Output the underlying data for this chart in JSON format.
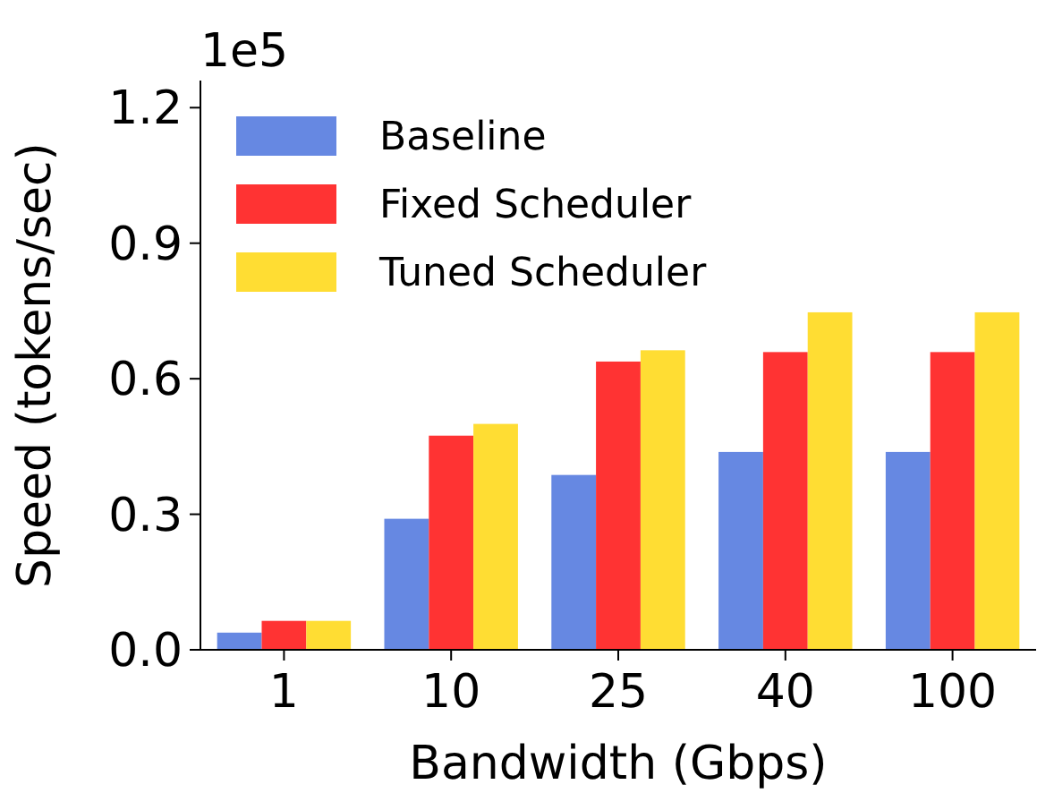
{
  "chart_data": {
    "type": "bar",
    "xlabel": "Bandwidth (Gbps)",
    "ylabel": "Speed (tokens/sec)",
    "annotations": [
      "1e5"
    ],
    "categories": [
      "1",
      "10",
      "25",
      "40",
      "100"
    ],
    "series": [
      {
        "name": "Baseline",
        "color": "#6688e2",
        "values": [
          0.038,
          0.29,
          0.387,
          0.438,
          0.438
        ]
      },
      {
        "name": "Fixed Scheduler",
        "color": "#ff3333",
        "values": [
          0.064,
          0.474,
          0.638,
          0.659,
          0.659
        ]
      },
      {
        "name": "Tuned Scheduler",
        "color": "#ffdd33",
        "values": [
          0.064,
          0.5,
          0.663,
          0.747,
          0.747
        ]
      }
    ],
    "ylim": [
      0,
      1.26
    ],
    "yticks": [
      {
        "value": 0,
        "label": "0.0"
      },
      0.3,
      0.6,
      0.9,
      1.2
    ],
    "grid": false,
    "legend": "top left"
  }
}
